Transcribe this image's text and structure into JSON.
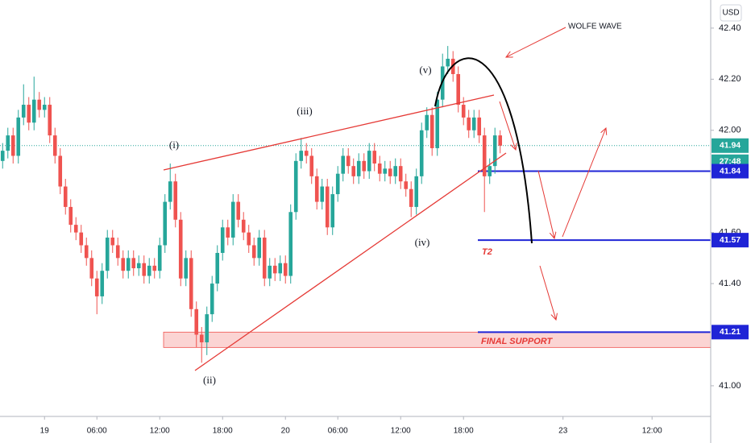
{
  "chart_data": {
    "type": "candlestick",
    "currency": "USD",
    "colors": {
      "up": "#26a69a",
      "down": "#ef5350",
      "level": "#1f24d6",
      "annotation": "#e53935"
    },
    "open": [
      41.88,
      41.92,
      41.98,
      41.9,
      42.05,
      42.1,
      42.03,
      42.12,
      42.08,
      42.1,
      41.98,
      41.9,
      41.78,
      41.7,
      41.63,
      41.6,
      41.55,
      41.5,
      41.42,
      41.35,
      41.45,
      41.58,
      41.55,
      41.5,
      41.45,
      41.5,
      41.46,
      41.48,
      41.43,
      41.47,
      41.45,
      41.55,
      41.72,
      41.8,
      41.65,
      41.42,
      41.5,
      41.3,
      41.2,
      41.17,
      41.28,
      41.4,
      41.52,
      41.62,
      41.58,
      41.72,
      41.65,
      41.6,
      41.55,
      41.5,
      41.58,
      41.42,
      41.47,
      41.44,
      41.48,
      41.43,
      41.68,
      41.88,
      41.92,
      41.9,
      41.82,
      41.72,
      41.78,
      41.62,
      41.75,
      41.83,
      41.9,
      41.86,
      41.82,
      41.88,
      41.84,
      41.92,
      41.87,
      41.83,
      41.85,
      41.82,
      41.86,
      41.8,
      41.77,
      41.7,
      41.82,
      42.0,
      42.06,
      41.93,
      42.12,
      42.25,
      42.28,
      42.22,
      42.1,
      42.05,
      42.0,
      42.05,
      41.98,
      41.82,
      41.86,
      41.98
    ],
    "high": [
      41.95,
      42.01,
      42.01,
      42.08,
      42.18,
      42.13,
      42.21,
      42.15,
      42.13,
      42.13,
      42.01,
      41.93,
      41.81,
      41.73,
      41.66,
      41.63,
      41.58,
      41.53,
      41.45,
      41.48,
      41.61,
      41.61,
      41.58,
      41.53,
      41.53,
      41.53,
      41.51,
      41.51,
      41.5,
      41.5,
      41.58,
      41.75,
      41.87,
      41.83,
      41.68,
      41.53,
      41.53,
      41.33,
      41.23,
      41.31,
      41.43,
      41.55,
      41.65,
      41.65,
      41.75,
      41.75,
      41.68,
      41.63,
      41.58,
      41.61,
      41.61,
      41.5,
      41.5,
      41.51,
      41.51,
      41.71,
      41.91,
      41.97,
      41.95,
      41.93,
      41.85,
      41.81,
      41.81,
      41.78,
      41.86,
      41.93,
      41.93,
      41.89,
      41.91,
      41.91,
      41.95,
      41.95,
      41.9,
      41.88,
      41.88,
      41.89,
      41.89,
      41.83,
      41.8,
      41.85,
      42.03,
      42.09,
      42.09,
      42.15,
      42.3,
      42.33,
      42.31,
      42.25,
      42.13,
      42.08,
      42.08,
      42.08,
      42.01,
      41.89,
      42.01,
      42.0
    ],
    "low": [
      41.85,
      41.89,
      41.87,
      41.87,
      42.02,
      42.0,
      42.0,
      42.05,
      42.05,
      41.95,
      41.87,
      41.75,
      41.67,
      41.6,
      41.57,
      41.52,
      41.47,
      41.39,
      41.28,
      41.32,
      41.42,
      41.52,
      41.47,
      41.42,
      41.42,
      41.43,
      41.43,
      41.4,
      41.4,
      41.42,
      41.42,
      41.52,
      41.69,
      41.62,
      41.39,
      41.39,
      41.27,
      41.15,
      41.09,
      41.12,
      41.25,
      41.37,
      41.49,
      41.55,
      41.55,
      41.62,
      41.57,
      41.52,
      41.47,
      41.47,
      41.39,
      41.39,
      41.41,
      41.41,
      41.4,
      41.4,
      41.65,
      41.85,
      41.87,
      41.79,
      41.69,
      41.69,
      41.59,
      41.59,
      41.72,
      41.8,
      41.83,
      41.79,
      41.79,
      41.81,
      41.81,
      41.84,
      41.8,
      41.8,
      41.79,
      41.79,
      41.77,
      41.74,
      41.66,
      41.67,
      41.79,
      41.97,
      41.9,
      41.9,
      42.09,
      42.22,
      42.19,
      42.07,
      42.02,
      41.97,
      41.97,
      41.95,
      41.68,
      41.79,
      41.83,
      41.91
    ],
    "close": [
      41.92,
      41.98,
      41.9,
      42.05,
      42.1,
      42.03,
      42.12,
      42.08,
      42.1,
      41.98,
      41.9,
      41.78,
      41.7,
      41.63,
      41.6,
      41.55,
      41.5,
      41.42,
      41.35,
      41.45,
      41.58,
      41.55,
      41.5,
      41.45,
      41.5,
      41.46,
      41.48,
      41.43,
      41.47,
      41.45,
      41.55,
      41.72,
      41.8,
      41.65,
      41.42,
      41.5,
      41.3,
      41.2,
      41.17,
      41.28,
      41.4,
      41.52,
      41.62,
      41.58,
      41.72,
      41.65,
      41.6,
      41.55,
      41.5,
      41.58,
      41.42,
      41.47,
      41.44,
      41.48,
      41.43,
      41.68,
      41.88,
      41.92,
      41.9,
      41.82,
      41.72,
      41.78,
      41.62,
      41.75,
      41.83,
      41.9,
      41.86,
      41.82,
      41.88,
      41.84,
      41.92,
      41.87,
      41.83,
      41.85,
      41.82,
      41.86,
      41.8,
      41.77,
      41.7,
      41.82,
      42.0,
      42.06,
      41.93,
      42.12,
      42.25,
      42.28,
      42.22,
      42.1,
      42.05,
      42.0,
      42.05,
      41.98,
      41.82,
      41.86,
      41.98,
      41.94
    ],
    "ylim": [
      40.88,
      42.51
    ],
    "yticks": [
      {
        "value": 41.0,
        "label": "41.00"
      },
      {
        "value": 41.4,
        "label": "41.40"
      },
      {
        "value": 41.6,
        "label": "41.60"
      },
      {
        "value": 42.0,
        "label": "42.00"
      },
      {
        "value": 42.2,
        "label": "42.20"
      },
      {
        "value": 42.4,
        "label": "42.40"
      }
    ],
    "xlim": [
      -0.5,
      135.2
    ],
    "xticks": [
      {
        "value": 8,
        "label": "19"
      },
      {
        "value": 18,
        "label": "06:00"
      },
      {
        "value": 30,
        "label": "12:00"
      },
      {
        "value": 42,
        "label": "18:00"
      },
      {
        "value": 54,
        "label": "20"
      },
      {
        "value": 64,
        "label": "06:00"
      },
      {
        "value": 76,
        "label": "12:00"
      },
      {
        "value": 88,
        "label": "18:00"
      },
      {
        "value": 107,
        "label": "23"
      },
      {
        "value": 124,
        "label": "12:00"
      }
    ],
    "last_price": 41.94,
    "countdown": "27:48",
    "levels": [
      41.84,
      41.57,
      41.21
    ],
    "support_zone": [
      41.15,
      41.21
    ],
    "annotations": {
      "wave_labels": [
        "(i)",
        "(ii)",
        "(iii)",
        "(iv)",
        "(v)"
      ],
      "wolfe_wave": "WOLFE WAVE",
      "target": "T2",
      "final_support": "FINAL SUPPORT"
    }
  }
}
